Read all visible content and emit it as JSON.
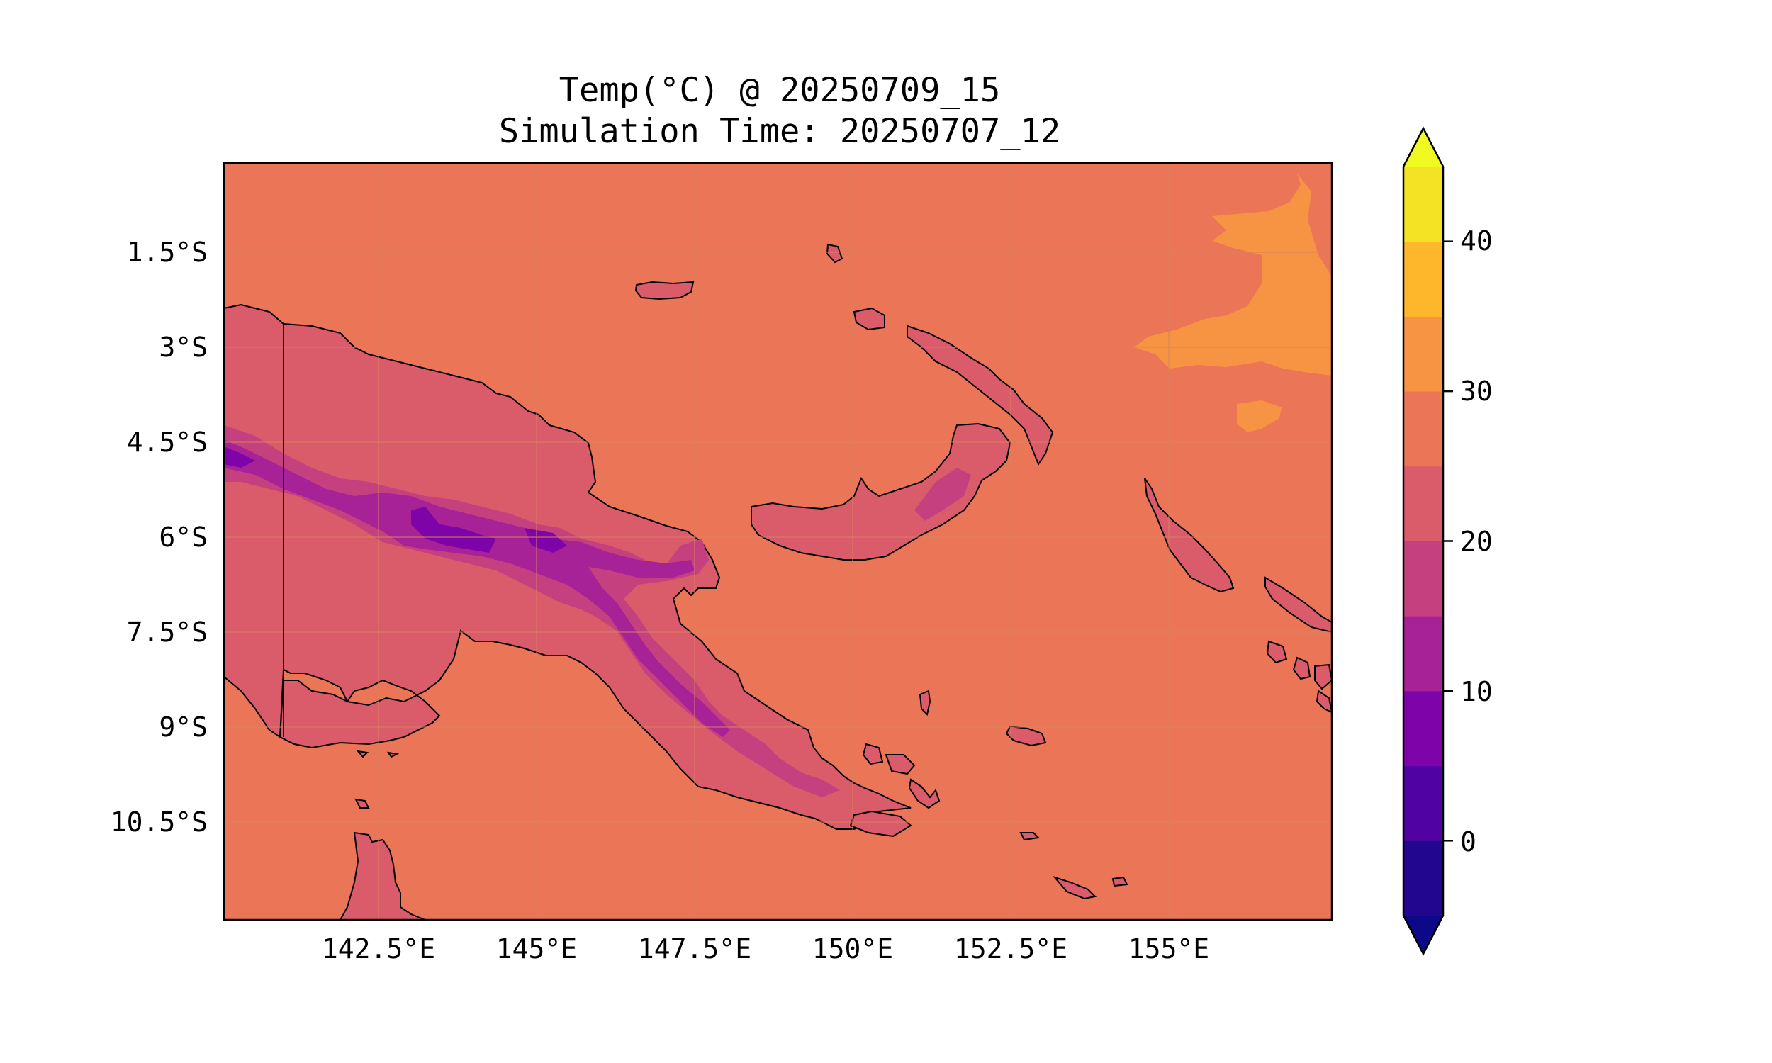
{
  "title": {
    "line1": "Temp(°C) @ 20250709_15",
    "line2": "Simulation Time: 20250707_12"
  },
  "map": {
    "region": "Papua New Guinea",
    "lon_range": [
      140.0,
      157.5
    ],
    "lat_range": [
      -12.0,
      -0.1
    ],
    "ocean_color": "#eb7557",
    "lat_ticks": [
      "1.5°S",
      "3°S",
      "4.5°S",
      "6°S",
      "7.5°S",
      "9°S",
      "10.5°S"
    ],
    "lon_ticks": [
      "142.5°E",
      "145°E",
      "147.5°E",
      "150°E",
      "152.5°E",
      "155°E"
    ],
    "features": [
      "coastlines",
      "border-141E",
      "temperature-contours"
    ]
  },
  "colorbar": {
    "ticks": [
      "0",
      "10",
      "20",
      "30",
      "40"
    ],
    "levels": [
      -5,
      0,
      5,
      10,
      15,
      20,
      25,
      30,
      35,
      40,
      45
    ],
    "colors": [
      "#0d0887",
      "#220690",
      "#5102a3",
      "#7e03a8",
      "#a72197",
      "#c5407e",
      "#da5b6a",
      "#eb7557",
      "#f79443",
      "#feb72a",
      "#f4e225",
      "#f0f921"
    ],
    "extend": "both"
  }
}
